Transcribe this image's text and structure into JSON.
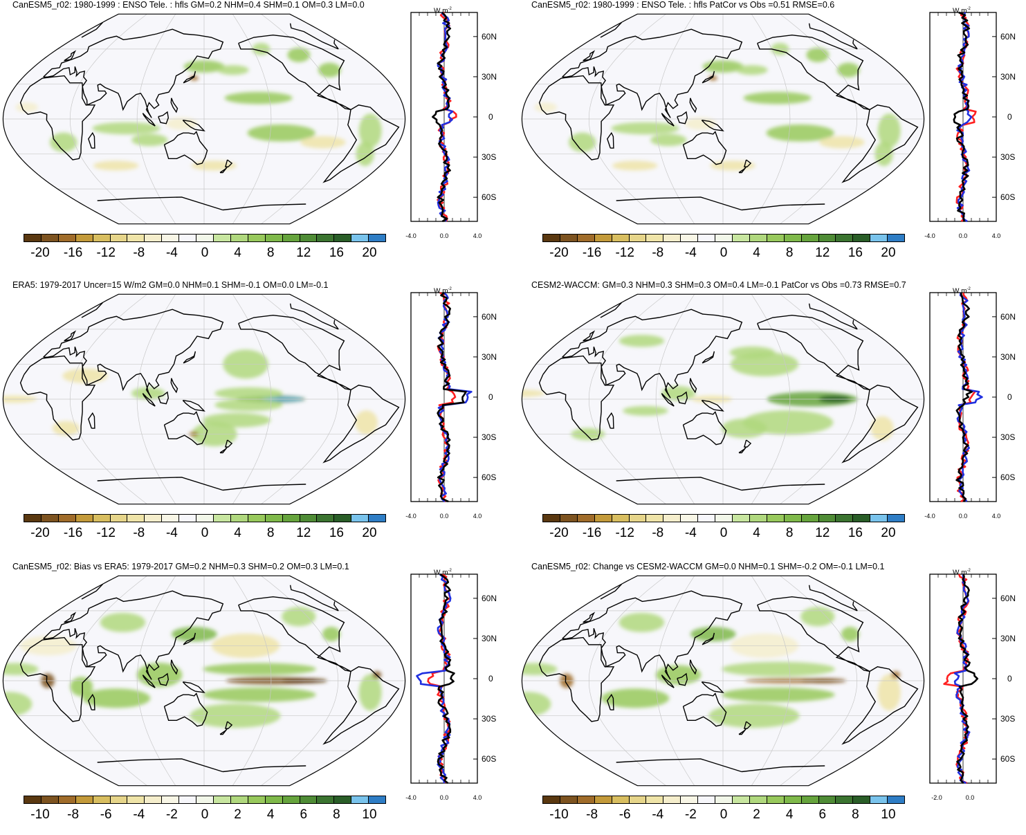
{
  "colors": {
    "brown_to_blue": [
      "#5a3810",
      "#7d5320",
      "#a06c2a",
      "#c39a3a",
      "#d8be60",
      "#e6d58a",
      "#efe4a8",
      "#f5eecc",
      "#f8f6e6",
      "#f7f7fb",
      "#f2f7e9",
      "#c8e6a0",
      "#b0d87e",
      "#98c95c",
      "#7fb94a",
      "#66a43d",
      "#4f8c36",
      "#3b7430",
      "#2a5e28",
      "#79c3ec",
      "#2e7dc5"
    ],
    "ocean": "#f7f7fb",
    "land_outline": "#000000",
    "grid": "#c8c8c8",
    "model_line": "#ff2020",
    "obs_line": "#2030e0",
    "diff_line": "#000000"
  },
  "panels": [
    {
      "title": "CanESM5_r02: 1980-1999 : ENSO Tele. : hfls GM=0.2 NHM=0.4 SHM=0.1 OM=0.3 LM=0.0",
      "colorbar_labels": [
        "-20",
        "-16",
        "-12",
        "-8",
        "-4",
        "0",
        "4",
        "8",
        "12",
        "16",
        "20"
      ],
      "zonal_x_labels": [
        "-4.0",
        "0.0",
        "4.0"
      ],
      "zonal_unit": "W m",
      "zonal_unit_exp": "-2",
      "lat_labels": [
        "60N",
        "30N",
        "0",
        "30S",
        "60S"
      ]
    },
    {
      "title": "CanESM5_r02: 1980-1999 : ENSO Tele. : hfls PatCor vs Obs =0.51 RMSE=0.6",
      "colorbar_labels": [
        "-20",
        "-16",
        "-12",
        "-8",
        "-4",
        "0",
        "4",
        "8",
        "12",
        "16",
        "20"
      ],
      "zonal_x_labels": [
        "-4.0",
        "0.0",
        "4.0"
      ],
      "zonal_unit": "W m",
      "zonal_unit_exp": "-2",
      "lat_labels": [
        "60N",
        "30N",
        "0",
        "30S",
        "60S"
      ]
    },
    {
      "title": "ERA5: 1979-2017 Uncer=15 W/m2 GM=0.0 NHM=0.1 SHM=-0.1 OM=0.0 LM=-0.1",
      "colorbar_labels": [
        "-20",
        "-16",
        "-12",
        "-8",
        "-4",
        "0",
        "4",
        "8",
        "12",
        "16",
        "20"
      ],
      "zonal_x_labels": [
        "-4.0",
        "0.0",
        "4.0"
      ],
      "zonal_unit": "W m",
      "zonal_unit_exp": "-2",
      "lat_labels": [
        "60N",
        "30N",
        "0",
        "30S",
        "60S"
      ]
    },
    {
      "title": "CESM2-WACCM: GM=0.3 NHM=0.3 SHM=0.3 OM=0.4 LM=-0.1 PatCor vs Obs =0.73 RMSE=0.7",
      "colorbar_labels": [
        "-20",
        "-16",
        "-12",
        "-8",
        "-4",
        "0",
        "4",
        "8",
        "12",
        "16",
        "20"
      ],
      "zonal_x_labels": [
        "-4.0",
        "0.0",
        "4.0"
      ],
      "zonal_unit": "W m",
      "zonal_unit_exp": "-2",
      "lat_labels": [
        "60N",
        "30N",
        "0",
        "30S",
        "60S"
      ]
    },
    {
      "title": "CanESM5_r02: Bias vs ERA5: 1979-2017 GM=0.2 NHM=0.3 SHM=0.2 OM=0.3 LM=0.1",
      "colorbar_labels": [
        "-10",
        "-8",
        "-6",
        "-4",
        "-2",
        "0",
        "2",
        "4",
        "6",
        "8",
        "10"
      ],
      "zonal_x_labels": [
        "-4.0",
        "0.0",
        "4.0"
      ],
      "zonal_unit": "W m",
      "zonal_unit_exp": "-2",
      "lat_labels": [
        "60N",
        "30N",
        "0",
        "30S",
        "60S"
      ]
    },
    {
      "title": "CanESM5_r02: Change vs CESM2-WACCM GM=0.0 NHM=0.1 SHM=-0.2 OM=-0.1 LM=0.1",
      "colorbar_labels": [
        "-10",
        "-8",
        "-6",
        "-4",
        "-2",
        "0",
        "2",
        "4",
        "6",
        "8",
        "10"
      ],
      "zonal_x_labels": [
        "-2.0",
        "0.0"
      ],
      "zonal_unit": "W m",
      "zonal_unit_exp": "-2",
      "lat_labels": [
        "60N",
        "30N",
        "0",
        "30S",
        "60S"
      ]
    }
  ]
}
